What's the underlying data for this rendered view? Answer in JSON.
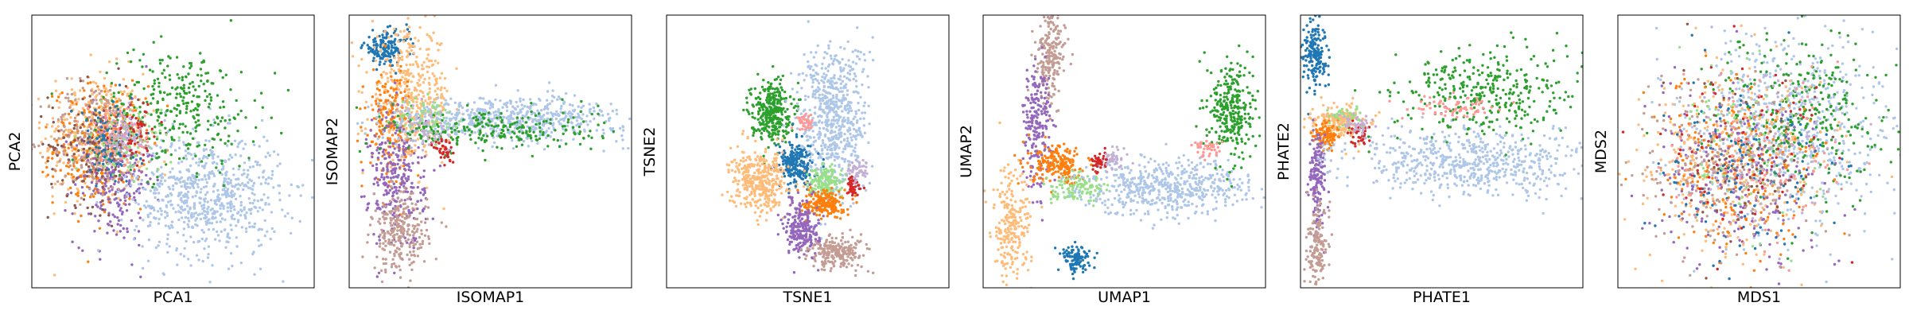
{
  "palette": [
    "#1f77b4",
    "#aec7e8",
    "#ff7f0e",
    "#ffbb78",
    "#2ca02c",
    "#98df8a",
    "#d62728",
    "#ff9896",
    "#9467bd",
    "#c5b0d5",
    "#8c564b",
    "#c49c94"
  ],
  "chart_data": [
    {
      "type": "scatter",
      "xlabel": "PCA1",
      "ylabel": "PCA2",
      "xlim": [
        0,
        100
      ],
      "ylim": [
        0,
        100
      ],
      "grid": false,
      "ticks": "none",
      "clusters": [
        {
          "color": 3,
          "cx": 22,
          "cy": 55,
          "sx": 9,
          "sy": 12,
          "n": 420
        },
        {
          "color": 2,
          "cx": 24,
          "cy": 52,
          "sx": 8,
          "sy": 11,
          "n": 260
        },
        {
          "color": 8,
          "cx": 29,
          "cy": 40,
          "sx": 7,
          "sy": 12,
          "n": 260
        },
        {
          "color": 11,
          "cx": 22,
          "cy": 54,
          "sx": 8,
          "sy": 11,
          "n": 220
        },
        {
          "color": 10,
          "cx": 22,
          "cy": 52,
          "sx": 8,
          "sy": 11,
          "n": 140
        },
        {
          "color": 1,
          "cx": 62,
          "cy": 34,
          "sx": 13,
          "sy": 11,
          "n": 700
        },
        {
          "color": 4,
          "cx": 52,
          "cy": 66,
          "sx": 14,
          "sy": 11,
          "n": 320
        },
        {
          "color": 0,
          "cx": 27,
          "cy": 52,
          "sx": 6,
          "sy": 8,
          "n": 100
        },
        {
          "color": 5,
          "cx": 34,
          "cy": 54,
          "sx": 6,
          "sy": 6,
          "n": 90
        },
        {
          "color": 6,
          "cx": 37,
          "cy": 57,
          "sx": 4,
          "sy": 5,
          "n": 60
        },
        {
          "color": 7,
          "cx": 30,
          "cy": 57,
          "sx": 5,
          "sy": 5,
          "n": 60
        },
        {
          "color": 9,
          "cx": 33,
          "cy": 55,
          "sx": 5,
          "sy": 5,
          "n": 60
        }
      ]
    },
    {
      "type": "scatter",
      "xlabel": "ISOMAP1",
      "ylabel": "ISOMAP2",
      "xlim": [
        0,
        100
      ],
      "ylim": [
        0,
        100
      ],
      "grid": false,
      "ticks": "none",
      "clusters": [
        {
          "color": 0,
          "cx": 13,
          "cy": 88,
          "sx": 4,
          "sy": 3,
          "n": 160
        },
        {
          "color": 3,
          "cx": 22,
          "cy": 70,
          "sx": 7,
          "sy": 12,
          "n": 420
        },
        {
          "color": 2,
          "cx": 14,
          "cy": 62,
          "sx": 4,
          "sy": 10,
          "n": 180
        },
        {
          "color": 8,
          "cx": 17,
          "cy": 40,
          "sx": 5,
          "sy": 13,
          "n": 300
        },
        {
          "color": 11,
          "cx": 18,
          "cy": 20,
          "sx": 5,
          "sy": 7,
          "n": 260
        },
        {
          "color": 1,
          "cx": 55,
          "cy": 62,
          "sx": 22,
          "sy": 4,
          "n": 650
        },
        {
          "color": 4,
          "cx": 50,
          "cy": 58,
          "sx": 19,
          "sy": 4,
          "n": 260
        },
        {
          "color": 6,
          "cx": 34,
          "cy": 50,
          "sx": 2,
          "sy": 3,
          "n": 40
        },
        {
          "color": 5,
          "cx": 28,
          "cy": 62,
          "sx": 5,
          "sy": 4,
          "n": 60
        },
        {
          "color": 9,
          "cx": 26,
          "cy": 58,
          "sx": 5,
          "sy": 5,
          "n": 50
        }
      ]
    },
    {
      "type": "scatter",
      "xlabel": "TSNE1",
      "ylabel": "TSNE2",
      "xlim": [
        0,
        100
      ],
      "ylim": [
        0,
        100
      ],
      "grid": false,
      "ticks": "none",
      "clusters": [
        {
          "color": 4,
          "cx": 37,
          "cy": 65,
          "sx": 3.5,
          "sy": 5.5,
          "n": 320
        },
        {
          "color": 1,
          "cx": 59,
          "cy": 62,
          "sx": 6,
          "sy": 14,
          "n": 650
        },
        {
          "color": 0,
          "cx": 46,
          "cy": 45,
          "sx": 3,
          "sy": 4,
          "n": 220
        },
        {
          "color": 3,
          "cx": 33,
          "cy": 39,
          "sx": 5,
          "sy": 5.5,
          "n": 380
        },
        {
          "color": 5,
          "cx": 56,
          "cy": 39,
          "sx": 3,
          "sy": 3,
          "n": 160
        },
        {
          "color": 2,
          "cx": 56,
          "cy": 31,
          "sx": 3.5,
          "sy": 2.5,
          "n": 200
        },
        {
          "color": 8,
          "cx": 48,
          "cy": 22,
          "sx": 3,
          "sy": 5,
          "n": 240
        },
        {
          "color": 11,
          "cx": 61,
          "cy": 13,
          "sx": 5,
          "sy": 3,
          "n": 220
        },
        {
          "color": 6,
          "cx": 66,
          "cy": 37,
          "sx": 1.5,
          "sy": 1.8,
          "n": 50
        },
        {
          "color": 7,
          "cx": 49,
          "cy": 61,
          "sx": 1.5,
          "sy": 1.5,
          "n": 40
        },
        {
          "color": 9,
          "cx": 68,
          "cy": 43,
          "sx": 2,
          "sy": 2,
          "n": 50
        }
      ]
    },
    {
      "type": "scatter",
      "xlabel": "UMAP1",
      "ylabel": "UMAP2",
      "xlim": [
        0,
        100
      ],
      "ylim": [
        0,
        100
      ],
      "grid": false,
      "ticks": "none",
      "clusters": [
        {
          "color": 11,
          "cx": 24,
          "cy": 85,
          "sx": 2.5,
          "sy": 8,
          "n": 200
        },
        {
          "color": 8,
          "cx": 19,
          "cy": 60,
          "sx": 2.5,
          "sy": 12,
          "n": 220
        },
        {
          "color": 3,
          "cx": 10,
          "cy": 22,
          "sx": 3.5,
          "sy": 10,
          "n": 240
        },
        {
          "color": 2,
          "cx": 27,
          "cy": 45,
          "sx": 5,
          "sy": 3.5,
          "n": 200
        },
        {
          "color": 5,
          "cx": 34,
          "cy": 36,
          "sx": 5,
          "sy": 2.5,
          "n": 120
        },
        {
          "color": 1,
          "cx": 65,
          "cy": 37,
          "sx": 15,
          "sy": 5,
          "n": 560
        },
        {
          "color": 4,
          "cx": 88,
          "cy": 65,
          "sx": 4,
          "sy": 9,
          "n": 300
        },
        {
          "color": 0,
          "cx": 33,
          "cy": 11,
          "sx": 2.5,
          "sy": 2.5,
          "n": 110
        },
        {
          "color": 6,
          "cx": 41,
          "cy": 46,
          "sx": 1.5,
          "sy": 2,
          "n": 40
        },
        {
          "color": 7,
          "cx": 80,
          "cy": 51,
          "sx": 2.5,
          "sy": 1.5,
          "n": 40
        },
        {
          "color": 9,
          "cx": 47,
          "cy": 47,
          "sx": 2,
          "sy": 2,
          "n": 40
        }
      ]
    },
    {
      "type": "scatter",
      "xlabel": "PHATE1",
      "ylabel": "PHATE2",
      "xlim": [
        0,
        100
      ],
      "ylim": [
        0,
        100
      ],
      "grid": false,
      "ticks": "none",
      "clusters": [
        {
          "color": 0,
          "cx": 5,
          "cy": 86,
          "sx": 2,
          "sy": 6,
          "n": 180
        },
        {
          "color": 3,
          "cx": 14,
          "cy": 61,
          "sx": 5,
          "sy": 3,
          "n": 200
        },
        {
          "color": 2,
          "cx": 9,
          "cy": 56,
          "sx": 2,
          "sy": 2.5,
          "n": 100
        },
        {
          "color": 8,
          "cx": 6,
          "cy": 40,
          "sx": 1.5,
          "sy": 9,
          "n": 160
        },
        {
          "color": 11,
          "cx": 6,
          "cy": 15,
          "sx": 1.8,
          "sy": 7,
          "n": 160
        },
        {
          "color": 1,
          "cx": 60,
          "cy": 46,
          "sx": 22,
          "sy": 6,
          "n": 620
        },
        {
          "color": 4,
          "cx": 65,
          "cy": 72,
          "sx": 16,
          "sy": 8,
          "n": 360
        },
        {
          "color": 7,
          "cx": 55,
          "cy": 66,
          "sx": 9,
          "sy": 2,
          "n": 70
        },
        {
          "color": 6,
          "cx": 21,
          "cy": 57,
          "sx": 2,
          "sy": 2.5,
          "n": 40
        },
        {
          "color": 5,
          "cx": 17,
          "cy": 63,
          "sx": 3,
          "sy": 2,
          "n": 40
        },
        {
          "color": 9,
          "cx": 20,
          "cy": 60,
          "sx": 3,
          "sy": 2,
          "n": 40
        }
      ]
    },
    {
      "type": "scatter",
      "xlabel": "MDS1",
      "ylabel": "MDS2",
      "xlim": [
        0,
        100
      ],
      "ylim": [
        0,
        100
      ],
      "grid": false,
      "ticks": "none",
      "clusters": [
        {
          "color": 1,
          "cx": 60,
          "cy": 58,
          "sx": 18,
          "sy": 18,
          "n": 650
        },
        {
          "color": 4,
          "cx": 66,
          "cy": 62,
          "sx": 15,
          "sy": 15,
          "n": 320
        },
        {
          "color": 3,
          "cx": 40,
          "cy": 46,
          "sx": 17,
          "sy": 17,
          "n": 380
        },
        {
          "color": 2,
          "cx": 42,
          "cy": 44,
          "sx": 16,
          "sy": 16,
          "n": 220
        },
        {
          "color": 8,
          "cx": 42,
          "cy": 40,
          "sx": 16,
          "sy": 16,
          "n": 220
        },
        {
          "color": 11,
          "cx": 38,
          "cy": 42,
          "sx": 16,
          "sy": 16,
          "n": 220
        },
        {
          "color": 0,
          "cx": 45,
          "cy": 48,
          "sx": 16,
          "sy": 16,
          "n": 140
        },
        {
          "color": 5,
          "cx": 46,
          "cy": 50,
          "sx": 15,
          "sy": 15,
          "n": 80
        },
        {
          "color": 6,
          "cx": 46,
          "cy": 50,
          "sx": 15,
          "sy": 15,
          "n": 80
        },
        {
          "color": 7,
          "cx": 50,
          "cy": 50,
          "sx": 15,
          "sy": 15,
          "n": 80
        },
        {
          "color": 9,
          "cx": 48,
          "cy": 50,
          "sx": 15,
          "sy": 15,
          "n": 80
        },
        {
          "color": 10,
          "cx": 44,
          "cy": 48,
          "sx": 15,
          "sy": 15,
          "n": 60
        }
      ]
    }
  ]
}
